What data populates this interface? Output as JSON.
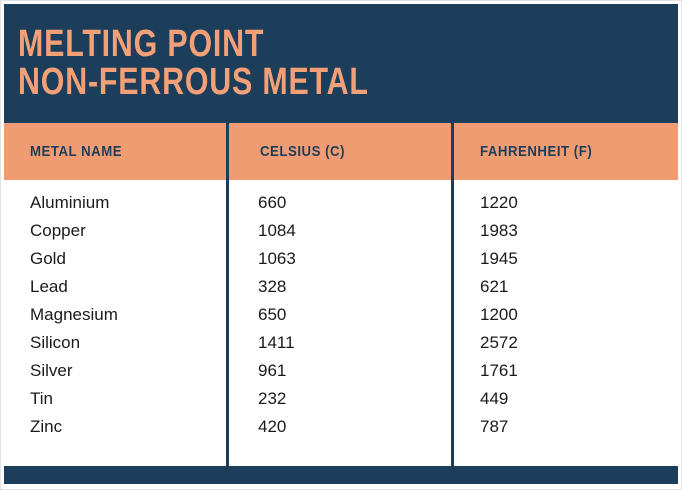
{
  "title": {
    "line1": "MELTING POINT",
    "line2": "NON-FERROUS METAL"
  },
  "table": {
    "headers": {
      "metal": "METAL NAME",
      "celsius": "CELSIUS (C)",
      "fahrenheit": "FAHRENHEIT (F)"
    },
    "rows": [
      {
        "name": "Aluminium",
        "celsius": "660",
        "fahrenheit": "1220"
      },
      {
        "name": "Copper",
        "celsius": "1084",
        "fahrenheit": "1983"
      },
      {
        "name": "Gold",
        "celsius": "1063",
        "fahrenheit": "1945"
      },
      {
        "name": "Lead",
        "celsius": "328",
        "fahrenheit": "621"
      },
      {
        "name": "Magnesium",
        "celsius": "650",
        "fahrenheit": "1200"
      },
      {
        "name": "Silicon",
        "celsius": "1411",
        "fahrenheit": "2572"
      },
      {
        "name": "Silver",
        "celsius": "961",
        "fahrenheit": "1761"
      },
      {
        "name": "Tin",
        "celsius": "232",
        "fahrenheit": "449"
      },
      {
        "name": "Zinc",
        "celsius": "420",
        "fahrenheit": "787"
      }
    ]
  },
  "colors": {
    "navy": "#1D3E5A",
    "orange": "#F09C72",
    "title_text": "#F2A078",
    "body_text": "#1A1A1A",
    "background": "#FFFFFF"
  },
  "chart_data": {
    "type": "table",
    "title": "MELTING POINT NON-FERROUS METAL",
    "columns": [
      "METAL NAME",
      "CELSIUS (C)",
      "FAHRENHEIT (F)"
    ],
    "rows": [
      [
        "Aluminium",
        660,
        1220
      ],
      [
        "Copper",
        1084,
        1983
      ],
      [
        "Gold",
        1063,
        1945
      ],
      [
        "Lead",
        328,
        621
      ],
      [
        "Magnesium",
        650,
        1200
      ],
      [
        "Silicon",
        1411,
        2572
      ],
      [
        "Silver",
        961,
        1761
      ],
      [
        "Tin",
        232,
        449
      ],
      [
        "Zinc",
        420,
        787
      ]
    ]
  }
}
